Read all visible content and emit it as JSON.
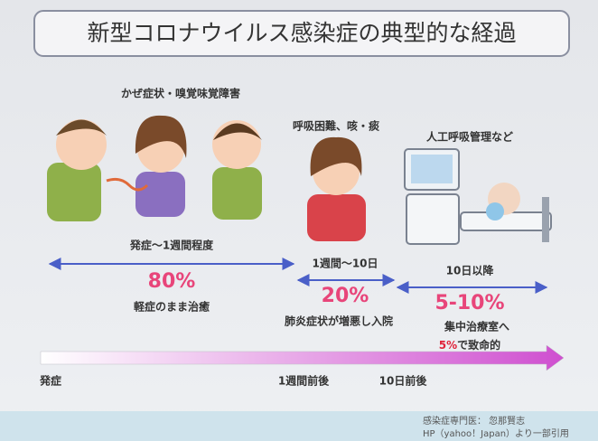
{
  "title": "新型コロナウイルス感染症の典型的な経過",
  "stages": [
    {
      "symptoms": "かぜ症状・嗅覚味覚障害",
      "period": "発症〜1週間程度",
      "percent": "80%",
      "outcome": "軽症のまま治癒"
    },
    {
      "symptoms": "呼吸困難、咳・痰",
      "period": "1週間〜10日",
      "percent": "20%",
      "outcome": "肺炎症状が増悪し入院"
    },
    {
      "symptoms": "人工呼吸管理など",
      "period": "10日以降",
      "percent": "5-10%",
      "outcome": "集中治療室へ"
    }
  ],
  "fatal": {
    "highlight": "5%",
    "text": "で致命的"
  },
  "timeline": [
    "発症",
    "1週間前後",
    "10日前後"
  ],
  "credits": [
    "感染症専門医： 忽那賢志",
    "HP（yahoo！Japan）より一部引用"
  ]
}
